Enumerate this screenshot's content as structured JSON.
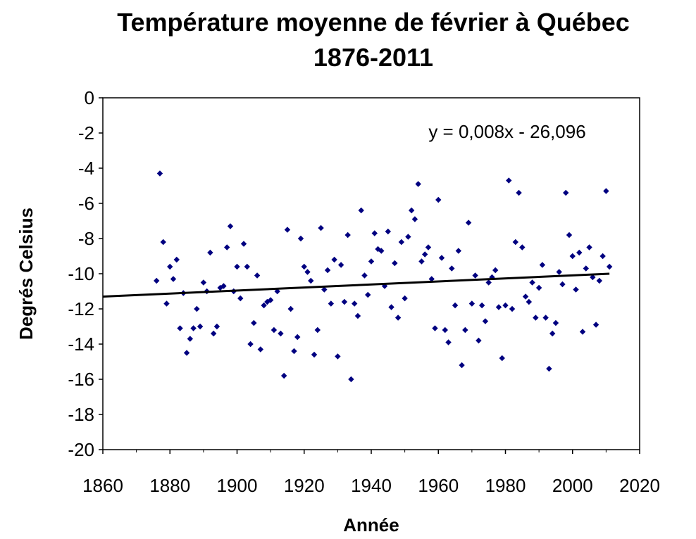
{
  "chart_data": {
    "type": "scatter",
    "title": "Température moyenne de février à Québec",
    "subtitle": "1876-2011",
    "xlabel": "Année",
    "ylabel": "Degrés Celsius",
    "xlim": [
      1860,
      2020
    ],
    "ylim": [
      -20,
      0
    ],
    "x_ticks": [
      "1860",
      "1880",
      "1900",
      "1920",
      "1940",
      "1960",
      "1980",
      "2000",
      "2020"
    ],
    "y_ticks": [
      "0",
      "-2",
      "-4",
      "-6",
      "-8",
      "-10",
      "-12",
      "-14",
      "-16",
      "-18",
      "-20"
    ],
    "grid": false,
    "legend": "none",
    "marker_color": "#000080",
    "trendline": {
      "equation": "y = 0,008x - 26,096",
      "x_start": 1860,
      "y_start": -11.3,
      "x_end": 2011,
      "y_end": -10.0,
      "color": "#000000"
    },
    "series": [
      {
        "name": "Février",
        "points": [
          [
            1876,
            -10.4
          ],
          [
            1877,
            -4.3
          ],
          [
            1878,
            -8.2
          ],
          [
            1879,
            -11.7
          ],
          [
            1880,
            -9.6
          ],
          [
            1881,
            -10.3
          ],
          [
            1882,
            -9.2
          ],
          [
            1883,
            -13.1
          ],
          [
            1884,
            -11.1
          ],
          [
            1885,
            -14.5
          ],
          [
            1886,
            -13.7
          ],
          [
            1887,
            -13.1
          ],
          [
            1888,
            -12.0
          ],
          [
            1889,
            -13.0
          ],
          [
            1890,
            -10.5
          ],
          [
            1891,
            -11.0
          ],
          [
            1892,
            -8.8
          ],
          [
            1893,
            -13.4
          ],
          [
            1894,
            -13.0
          ],
          [
            1895,
            -10.8
          ],
          [
            1896,
            -10.7
          ],
          [
            1897,
            -8.5
          ],
          [
            1898,
            -7.3
          ],
          [
            1899,
            -11.0
          ],
          [
            1900,
            -9.6
          ],
          [
            1901,
            -11.4
          ],
          [
            1902,
            -8.3
          ],
          [
            1903,
            -9.6
          ],
          [
            1904,
            -14.0
          ],
          [
            1905,
            -12.8
          ],
          [
            1906,
            -10.1
          ],
          [
            1907,
            -14.3
          ],
          [
            1908,
            -11.8
          ],
          [
            1909,
            -11.6
          ],
          [
            1910,
            -11.5
          ],
          [
            1911,
            -13.2
          ],
          [
            1912,
            -11.0
          ],
          [
            1913,
            -13.4
          ],
          [
            1914,
            -15.8
          ],
          [
            1915,
            -7.5
          ],
          [
            1916,
            -12.0
          ],
          [
            1917,
            -14.4
          ],
          [
            1918,
            -13.6
          ],
          [
            1919,
            -8.0
          ],
          [
            1920,
            -9.6
          ],
          [
            1921,
            -9.9
          ],
          [
            1922,
            -10.4
          ],
          [
            1923,
            -14.6
          ],
          [
            1924,
            -13.2
          ],
          [
            1925,
            -7.4
          ],
          [
            1926,
            -10.9
          ],
          [
            1927,
            -9.8
          ],
          [
            1928,
            -11.7
          ],
          [
            1929,
            -9.2
          ],
          [
            1930,
            -14.7
          ],
          [
            1931,
            -9.5
          ],
          [
            1932,
            -11.6
          ],
          [
            1933,
            -7.8
          ],
          [
            1934,
            -16.0
          ],
          [
            1935,
            -11.7
          ],
          [
            1936,
            -12.4
          ],
          [
            1937,
            -6.4
          ],
          [
            1938,
            -10.1
          ],
          [
            1939,
            -11.2
          ],
          [
            1940,
            -9.3
          ],
          [
            1941,
            -7.7
          ],
          [
            1942,
            -8.6
          ],
          [
            1943,
            -8.7
          ],
          [
            1944,
            -10.7
          ],
          [
            1945,
            -7.6
          ],
          [
            1946,
            -11.9
          ],
          [
            1947,
            -9.4
          ],
          [
            1948,
            -12.5
          ],
          [
            1949,
            -8.2
          ],
          [
            1950,
            -11.4
          ],
          [
            1951,
            -7.9
          ],
          [
            1952,
            -6.4
          ],
          [
            1953,
            -6.9
          ],
          [
            1954,
            -4.9
          ],
          [
            1955,
            -9.3
          ],
          [
            1956,
            -8.9
          ],
          [
            1957,
            -8.5
          ],
          [
            1958,
            -10.3
          ],
          [
            1959,
            -13.1
          ],
          [
            1960,
            -5.8
          ],
          [
            1961,
            -9.1
          ],
          [
            1962,
            -13.2
          ],
          [
            1963,
            -13.9
          ],
          [
            1964,
            -9.7
          ],
          [
            1965,
            -11.8
          ],
          [
            1966,
            -8.7
          ],
          [
            1967,
            -15.2
          ],
          [
            1968,
            -13.2
          ],
          [
            1969,
            -7.1
          ],
          [
            1970,
            -11.7
          ],
          [
            1971,
            -10.1
          ],
          [
            1972,
            -13.8
          ],
          [
            1973,
            -11.8
          ],
          [
            1974,
            -12.7
          ],
          [
            1975,
            -10.5
          ],
          [
            1976,
            -10.2
          ],
          [
            1977,
            -9.8
          ],
          [
            1978,
            -11.9
          ],
          [
            1979,
            -14.8
          ],
          [
            1980,
            -11.8
          ],
          [
            1981,
            -4.7
          ],
          [
            1982,
            -12.0
          ],
          [
            1983,
            -8.2
          ],
          [
            1984,
            -5.4
          ],
          [
            1985,
            -8.5
          ],
          [
            1986,
            -11.3
          ],
          [
            1987,
            -11.6
          ],
          [
            1988,
            -10.5
          ],
          [
            1989,
            -12.5
          ],
          [
            1990,
            -10.8
          ],
          [
            1991,
            -9.5
          ],
          [
            1992,
            -12.5
          ],
          [
            1993,
            -15.4
          ],
          [
            1994,
            -13.4
          ],
          [
            1995,
            -12.8
          ],
          [
            1996,
            -9.9
          ],
          [
            1997,
            -10.6
          ],
          [
            1998,
            -5.4
          ],
          [
            1999,
            -7.8
          ],
          [
            2000,
            -9.0
          ],
          [
            2001,
            -10.9
          ],
          [
            2002,
            -8.8
          ],
          [
            2003,
            -13.3
          ],
          [
            2004,
            -9.7
          ],
          [
            2005,
            -8.5
          ],
          [
            2006,
            -10.2
          ],
          [
            2007,
            -12.9
          ],
          [
            2008,
            -10.4
          ],
          [
            2009,
            -9.0
          ],
          [
            2010,
            -5.3
          ],
          [
            2011,
            -9.6
          ]
        ]
      }
    ]
  }
}
